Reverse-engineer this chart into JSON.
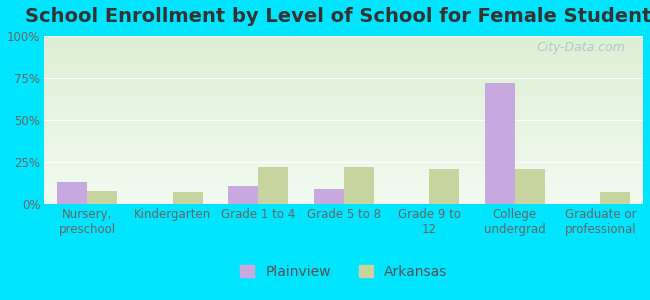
{
  "title": "School Enrollment by Level of School for Female Students",
  "categories": [
    "Nursery,\npreschool",
    "Kindergarten",
    "Grade 1 to 4",
    "Grade 5 to 8",
    "Grade 9 to\n12",
    "College\nundergrad",
    "Graduate or\nprofessional"
  ],
  "plainview": [
    13,
    0,
    11,
    9,
    0,
    72,
    0
  ],
  "arkansas": [
    8,
    7,
    22,
    22,
    21,
    21,
    7
  ],
  "plainview_color": "#c9a8e0",
  "arkansas_color": "#c8d4a0",
  "background_color": "#00e5ff",
  "ylim": [
    0,
    100
  ],
  "yticks": [
    0,
    25,
    50,
    75,
    100
  ],
  "ytick_labels": [
    "0%",
    "25%",
    "50%",
    "75%",
    "100%"
  ],
  "legend_labels": [
    "Plainview",
    "Arkansas"
  ],
  "bar_width": 0.35,
  "title_fontsize": 14,
  "tick_fontsize": 8.5,
  "legend_fontsize": 10
}
